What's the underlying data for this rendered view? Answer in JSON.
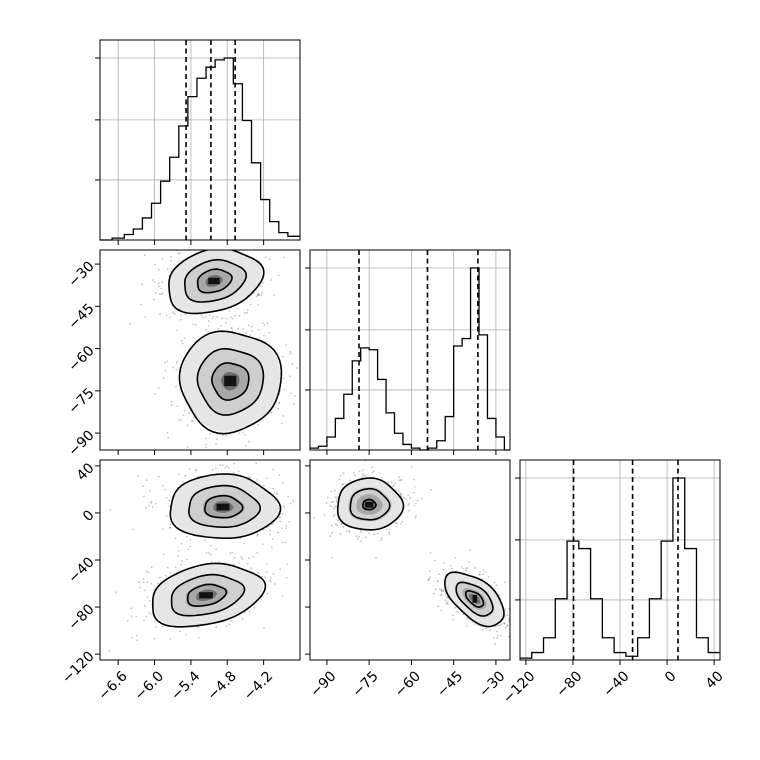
{
  "chart_data": {
    "type": "corner",
    "parameters": [
      {
        "range": [
          -6.9,
          -3.6
        ],
        "ticks": [
          -6.6,
          -6.0,
          -5.4,
          -4.8,
          -4.2
        ],
        "tick_labels": [
          "−6.6",
          "−6.0",
          "−5.4",
          "−4.8",
          "−4.2"
        ]
      },
      {
        "range": [
          -96,
          -25
        ],
        "ticks": [
          -90,
          -75,
          -60,
          -45,
          -30
        ],
        "tick_labels": [
          "−90",
          "−75",
          "−60",
          "−45",
          "−30"
        ]
      },
      {
        "range": [
          -125,
          45
        ],
        "ticks": [
          -120,
          -80,
          -40,
          0,
          40
        ],
        "tick_labels": [
          "−120",
          "−80",
          "−40",
          "0",
          "40"
        ]
      }
    ],
    "histograms": [
      {
        "parameter": 0,
        "bin_edges": [
          -6.9,
          -6.7,
          -6.5,
          -6.35,
          -6.2,
          -6.05,
          -5.9,
          -5.75,
          -5.6,
          -5.45,
          -5.3,
          -5.15,
          -5.0,
          -4.85,
          -4.7,
          -4.55,
          -4.4,
          -4.25,
          -4.1,
          -3.95,
          -3.8,
          -3.6
        ],
        "counts": [
          0,
          0.01,
          0.03,
          0.06,
          0.12,
          0.2,
          0.32,
          0.45,
          0.62,
          0.78,
          0.88,
          0.94,
          0.98,
          0.99,
          0.85,
          0.65,
          0.42,
          0.22,
          0.1,
          0.04,
          0.02
        ],
        "quantiles": [
          -5.48,
          -5.07,
          -4.67
        ]
      },
      {
        "parameter": 1,
        "bin_edges": [
          -96,
          -93,
          -90,
          -87,
          -84,
          -81,
          -78,
          -75,
          -72,
          -69,
          -66,
          -63,
          -60,
          -57,
          -54,
          -51,
          -48,
          -45,
          -42,
          -39,
          -36,
          -33,
          -30,
          -27,
          -25
        ],
        "counts": [
          0.01,
          0.02,
          0.07,
          0.17,
          0.3,
          0.48,
          0.55,
          0.54,
          0.38,
          0.2,
          0.09,
          0.03,
          0.01,
          0,
          0.01,
          0.05,
          0.18,
          0.56,
          0.6,
          0.98,
          0.62,
          0.17,
          0.07,
          0
        ],
        "quantiles": [
          -78.6,
          -54.3,
          -36.4
        ]
      },
      {
        "parameter": 2,
        "bin_edges": [
          -125,
          -115,
          -105,
          -95,
          -85,
          -75,
          -65,
          -55,
          -45,
          -35,
          -25,
          -15,
          -5,
          5,
          15,
          25,
          35,
          45
        ],
        "counts": [
          0.01,
          0.04,
          0.12,
          0.33,
          0.64,
          0.6,
          0.33,
          0.12,
          0.04,
          0.02,
          0.12,
          0.33,
          0.64,
          0.98,
          0.6,
          0.12,
          0.04
        ],
        "quantiles": [
          -79.5,
          -29.3,
          9.3
        ]
      }
    ],
    "pair_plots": [
      {
        "x_param": 0,
        "y_param": 1,
        "clusters": [
          {
            "center": [
              -5.02,
              -36.0
            ],
            "spread": [
              0.38,
              5.2
            ],
            "rotation_deg": -15,
            "contour_scales": [
              1.05,
              0.68,
              0.38
            ]
          },
          {
            "center": [
              -4.75,
              -71.5
            ],
            "spread": [
              0.4,
              8.5
            ],
            "rotation_deg": -35,
            "contour_scales": [
              1.05,
              0.68,
              0.38
            ]
          }
        ]
      },
      {
        "x_param": 0,
        "y_param": 2,
        "clusters": [
          {
            "center": [
              -4.87,
              5.0
            ],
            "spread": [
              0.43,
              13.0
            ],
            "rotation_deg": 0,
            "contour_scales": [
              1.05,
              0.68,
              0.36
            ]
          },
          {
            "center": [
              -5.15,
              -70.0
            ],
            "spread": [
              0.45,
              12.0
            ],
            "rotation_deg": -12,
            "contour_scales": [
              1.05,
              0.68,
              0.36
            ]
          }
        ]
      },
      {
        "x_param": 1,
        "y_param": 2,
        "clusters": [
          {
            "center": [
              -75.0,
              7.0
            ],
            "spread": [
              5.8,
              11.0
            ],
            "rotation_deg": 0,
            "contour_scales": [
              1.0,
              0.6,
              0.2
            ]
          },
          {
            "center": [
              -37.5,
              -73.0
            ],
            "spread": [
              3.3,
              15.0
            ],
            "rotation_deg": -50,
            "contour_scales": [
              1.0,
              0.62,
              0.3
            ]
          }
        ]
      }
    ],
    "grid": true
  }
}
